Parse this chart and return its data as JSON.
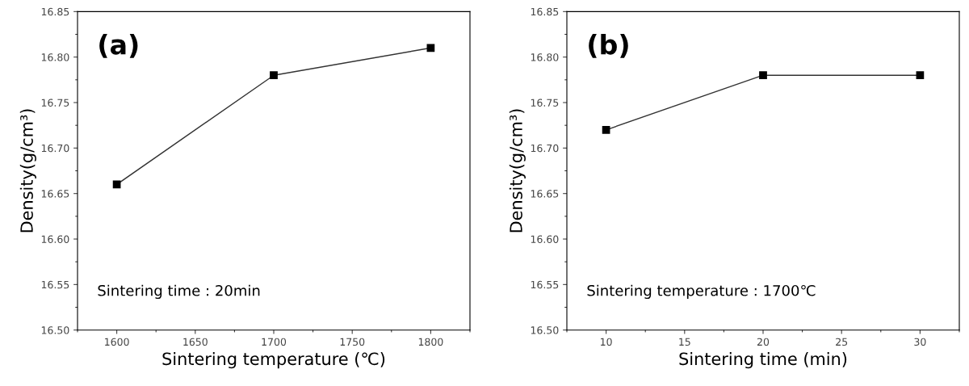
{
  "chart_data": [
    {
      "type": "line",
      "xlabel": "Sintering temperature (℃)",
      "ylabel": "Density(g/cm³)",
      "annotations": [
        "(a)",
        "Sintering time : 20min"
      ],
      "x": [
        1600,
        1700,
        1800
      ],
      "series": [
        {
          "color": "#000000",
          "values": [
            16.66,
            16.78,
            16.81
          ]
        }
      ],
      "xlim": [
        1575,
        1825
      ],
      "xticks": [
        1600,
        1650,
        1700,
        1750,
        1800
      ],
      "ylim": [
        16.5,
        16.85
      ],
      "yticks": [
        {
          "value": 16.5,
          "label": "16.50"
        },
        16.55,
        {
          "value": 16.6,
          "label": "16.60"
        },
        16.65,
        {
          "value": 16.7,
          "label": "16.70"
        },
        16.75,
        {
          "value": 16.8,
          "label": "16.80"
        },
        16.85
      ],
      "marker": "square",
      "line_style": "solid",
      "grid": false,
      "legend": false
    },
    {
      "type": "line",
      "xlabel": "Sintering time (min)",
      "ylabel": "Density(g/cm³)",
      "annotations": [
        "(b)",
        "Sintering temperature : 1700℃"
      ],
      "x": [
        10,
        20,
        30
      ],
      "series": [
        {
          "color": "#000000",
          "values": [
            16.72,
            16.78,
            16.78
          ]
        }
      ],
      "xlim": [
        7.5,
        32.5
      ],
      "xticks": [
        10,
        15,
        20,
        25,
        30
      ],
      "ylim": [
        16.5,
        16.85
      ],
      "yticks": [
        {
          "value": 16.5,
          "label": "16.50"
        },
        16.55,
        {
          "value": 16.6,
          "label": "16.60"
        },
        16.65,
        {
          "value": 16.7,
          "label": "16.70"
        },
        16.75,
        {
          "value": 16.8,
          "label": "16.80"
        },
        16.85
      ],
      "marker": "square",
      "line_style": "solid",
      "grid": false,
      "legend": false
    }
  ]
}
